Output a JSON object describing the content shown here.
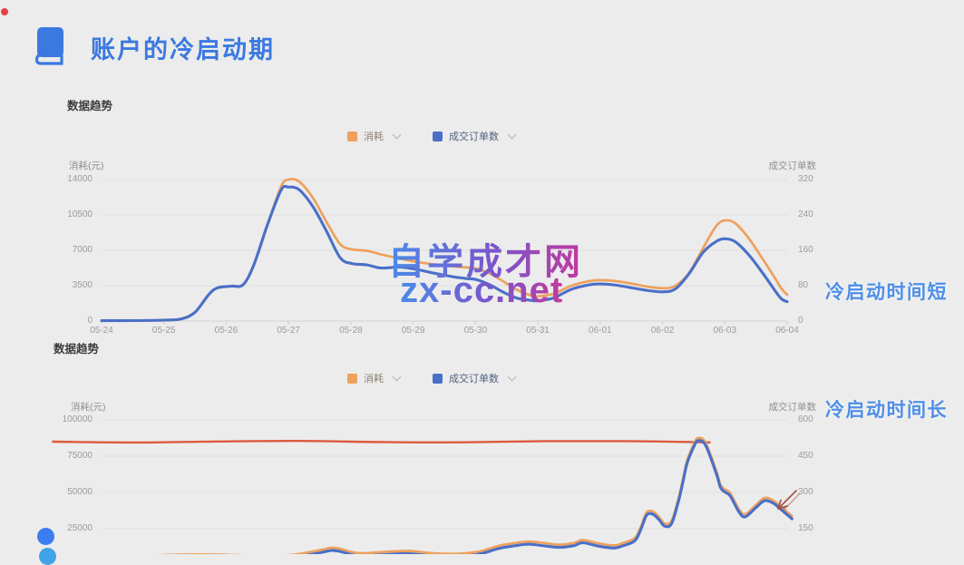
{
  "page": {
    "background": "#ececec",
    "recording_dot_color": "#e34040"
  },
  "header": {
    "icon": "book-icon",
    "title": "账户的冷启动期",
    "title_color": "#3b79e0"
  },
  "watermark": {
    "line1": "自学成才网",
    "line2": "zx-cc.net",
    "gradient_from": "#4a8ce8",
    "gradient_mid": "#7a55cc",
    "gradient_to": "#c23a9e"
  },
  "decorations": {
    "bottom_dot_1_color": "#3b7cf0",
    "bottom_dot_2_color": "#41a4e6",
    "hand_drawn_arrow_color": "#a3524a"
  },
  "chart_data": [
    {
      "type": "line",
      "section_label": "数据趋势",
      "callout": "冷启动时间短",
      "legend_position": "top-center",
      "grid": true,
      "x_categories": [
        "05-24",
        "05-25",
        "05-26",
        "05-27",
        "05-28",
        "05-29",
        "05-30",
        "05-31",
        "06-01",
        "06-02",
        "06-03",
        "06-04"
      ],
      "left_axis": {
        "title": "消耗(元)",
        "ticks": [
          "14000",
          "10500",
          "7000",
          "3500",
          "0"
        ],
        "max": 14000
      },
      "right_axis": {
        "title": "成交订单数",
        "ticks": [
          "320",
          "240",
          "160",
          "80",
          "0"
        ],
        "max": 320
      },
      "series": [
        {
          "name": "消耗",
          "axis": "left",
          "color": "#eda15d",
          "x_unit": "days_from_05-24",
          "points": [
            [
              0,
              60
            ],
            [
              0.55,
              60
            ],
            [
              1,
              80
            ],
            [
              1.28,
              200
            ],
            [
              1.5,
              900
            ],
            [
              1.72,
              2600
            ],
            [
              1.86,
              3300
            ],
            [
              2.08,
              3450
            ],
            [
              2.27,
              3600
            ],
            [
              2.44,
              5500
            ],
            [
              2.66,
              9500
            ],
            [
              2.88,
              13300
            ],
            [
              3,
              14000
            ],
            [
              3.17,
              13800
            ],
            [
              3.39,
              12200
            ],
            [
              3.61,
              9800
            ],
            [
              3.83,
              7600
            ],
            [
              4.02,
              7100
            ],
            [
              4.26,
              6950
            ],
            [
              4.48,
              6600
            ],
            [
              4.77,
              6200
            ],
            [
              5.01,
              5900
            ],
            [
              5.35,
              5600
            ],
            [
              5.65,
              5400
            ],
            [
              5.86,
              5300
            ],
            [
              6.01,
              5200
            ],
            [
              6.23,
              4700
            ],
            [
              6.45,
              3900
            ],
            [
              6.66,
              3100
            ],
            [
              6.88,
              2550
            ],
            [
              7,
              2450
            ],
            [
              7.25,
              2700
            ],
            [
              7.54,
              3500
            ],
            [
              7.83,
              3950
            ],
            [
              8,
              4050
            ],
            [
              8.26,
              3950
            ],
            [
              8.55,
              3650
            ],
            [
              8.77,
              3400
            ],
            [
              9.01,
              3250
            ],
            [
              9.21,
              3500
            ],
            [
              9.43,
              4800
            ],
            [
              9.65,
              7200
            ],
            [
              9.86,
              9400
            ],
            [
              10,
              9950
            ],
            [
              10.16,
              9700
            ],
            [
              10.37,
              8300
            ],
            [
              10.59,
              6300
            ],
            [
              10.81,
              4200
            ],
            [
              10.91,
              3200
            ],
            [
              11,
              2600
            ]
          ]
        },
        {
          "name": "成交订单数",
          "axis": "right",
          "color": "#4a6fc7",
          "x_unit": "days_from_05-24",
          "points": [
            [
              0,
              1
            ],
            [
              0.55,
              1
            ],
            [
              1,
              2
            ],
            [
              1.28,
              5
            ],
            [
              1.5,
              20
            ],
            [
              1.72,
              60
            ],
            [
              1.86,
              75
            ],
            [
              2.08,
              79
            ],
            [
              2.27,
              82
            ],
            [
              2.44,
              126
            ],
            [
              2.66,
              217
            ],
            [
              2.88,
              296
            ],
            [
              3,
              303
            ],
            [
              3.17,
              297
            ],
            [
              3.39,
              259
            ],
            [
              3.61,
              203
            ],
            [
              3.83,
              143
            ],
            [
              4.02,
              130
            ],
            [
              4.26,
              127
            ],
            [
              4.48,
              120
            ],
            [
              4.77,
              122
            ],
            [
              5.01,
              118
            ],
            [
              5.35,
              108
            ],
            [
              5.65,
              100
            ],
            [
              5.86,
              96
            ],
            [
              6.01,
              94
            ],
            [
              6.23,
              82
            ],
            [
              6.45,
              65
            ],
            [
              6.66,
              52
            ],
            [
              6.88,
              47
            ],
            [
              7,
              46
            ],
            [
              7.25,
              52
            ],
            [
              7.54,
              72
            ],
            [
              7.83,
              82
            ],
            [
              8,
              84
            ],
            [
              8.26,
              81
            ],
            [
              8.55,
              74
            ],
            [
              8.77,
              69
            ],
            [
              9.01,
              66
            ],
            [
              9.21,
              73
            ],
            [
              9.43,
              108
            ],
            [
              9.65,
              155
            ],
            [
              9.86,
              180
            ],
            [
              10,
              186
            ],
            [
              10.16,
              180
            ],
            [
              10.37,
              152
            ],
            [
              10.59,
              112
            ],
            [
              10.81,
              68
            ],
            [
              10.91,
              50
            ],
            [
              11,
              44
            ]
          ]
        }
      ]
    },
    {
      "type": "line",
      "section_label": "数据趋势",
      "callout": "冷启动时间长",
      "legend_position": "top-center",
      "grid": true,
      "x_categories": [],
      "x_axis_note": "date labels cut off at bottom of screenshot",
      "left_axis": {
        "title": "消耗(元)",
        "ticks": [
          "100000",
          "75000",
          "50000",
          "25000"
        ],
        "max": 100000
      },
      "right_axis": {
        "title": "成交订单数",
        "ticks": [
          "600",
          "450",
          "300",
          "150"
        ],
        "max": 600
      },
      "annotation_line": {
        "type": "horizontal",
        "axis": "left",
        "value": 85000,
        "color": "#dc5a3e",
        "x_from": -0.071,
        "x_to": 0.887
      },
      "series": [
        {
          "name": "消耗",
          "axis": "left",
          "color": "#eda15d",
          "x_unit": "fraction_of_range",
          "points": [
            [
              0,
              6000
            ],
            [
              0.063,
              6500
            ],
            [
              0.116,
              7200
            ],
            [
              0.169,
              7200
            ],
            [
              0.222,
              6500
            ],
            [
              0.275,
              6900
            ],
            [
              0.321,
              10500
            ],
            [
              0.335,
              11900
            ],
            [
              0.348,
              11200
            ],
            [
              0.374,
              8200
            ],
            [
              0.407,
              8900
            ],
            [
              0.447,
              9700
            ],
            [
              0.48,
              8200
            ],
            [
              0.513,
              7700
            ],
            [
              0.54,
              8500
            ],
            [
              0.557,
              10000
            ],
            [
              0.579,
              13200
            ],
            [
              0.602,
              15100
            ],
            [
              0.623,
              16200
            ],
            [
              0.646,
              15100
            ],
            [
              0.668,
              14000
            ],
            [
              0.689,
              15200
            ],
            [
              0.702,
              17200
            ],
            [
              0.725,
              14900
            ],
            [
              0.747,
              13500
            ],
            [
              0.761,
              15200
            ],
            [
              0.778,
              18700
            ],
            [
              0.787,
              26900
            ],
            [
              0.795,
              36200
            ],
            [
              0.804,
              36900
            ],
            [
              0.813,
              33200
            ],
            [
              0.821,
              28700
            ],
            [
              0.831,
              30000
            ],
            [
              0.84,
              43200
            ],
            [
              0.847,
              56900
            ],
            [
              0.854,
              71900
            ],
            [
              0.864,
              83500
            ],
            [
              0.87,
              87500
            ],
            [
              0.881,
              84400
            ],
            [
              0.897,
              64400
            ],
            [
              0.903,
              55000
            ],
            [
              0.91,
              51900
            ],
            [
              0.917,
              49400
            ],
            [
              0.93,
              38200
            ],
            [
              0.939,
              35000
            ],
            [
              0.954,
              41200
            ],
            [
              0.967,
              46200
            ],
            [
              0.98,
              44400
            ],
            [
              0.993,
              39400
            ],
            [
              1.007,
              33700
            ]
          ]
        },
        {
          "name": "成交订单数",
          "axis": "right",
          "color": "#4a6fc7",
          "x_unit": "fraction_of_range",
          "points": [
            [
              0,
              25
            ],
            [
              0.063,
              28
            ],
            [
              0.116,
              32
            ],
            [
              0.169,
              32
            ],
            [
              0.222,
              28
            ],
            [
              0.275,
              30
            ],
            [
              0.321,
              52
            ],
            [
              0.335,
              60
            ],
            [
              0.348,
              56
            ],
            [
              0.374,
              38
            ],
            [
              0.407,
              42
            ],
            [
              0.447,
              47
            ],
            [
              0.48,
              38
            ],
            [
              0.513,
              35
            ],
            [
              0.54,
              40
            ],
            [
              0.557,
              49
            ],
            [
              0.579,
              68
            ],
            [
              0.602,
              79
            ],
            [
              0.623,
              86
            ],
            [
              0.646,
              79
            ],
            [
              0.668,
              73
            ],
            [
              0.689,
              80
            ],
            [
              0.702,
              92
            ],
            [
              0.725,
              78
            ],
            [
              0.747,
              70
            ],
            [
              0.761,
              80
            ],
            [
              0.778,
              101
            ],
            [
              0.787,
              150
            ],
            [
              0.795,
              206
            ],
            [
              0.804,
              210
            ],
            [
              0.813,
              188
            ],
            [
              0.821,
              161
            ],
            [
              0.831,
              169
            ],
            [
              0.84,
              248
            ],
            [
              0.847,
              330
            ],
            [
              0.854,
              420
            ],
            [
              0.864,
              490
            ],
            [
              0.87,
              514
            ],
            [
              0.881,
              495
            ],
            [
              0.897,
              375
            ],
            [
              0.903,
              319
            ],
            [
              0.91,
              300
            ],
            [
              0.917,
              285
            ],
            [
              0.93,
              218
            ],
            [
              0.939,
              199
            ],
            [
              0.954,
              236
            ],
            [
              0.967,
              266
            ],
            [
              0.98,
              255
            ],
            [
              0.993,
              225
            ],
            [
              1.007,
              191
            ]
          ]
        }
      ]
    }
  ]
}
